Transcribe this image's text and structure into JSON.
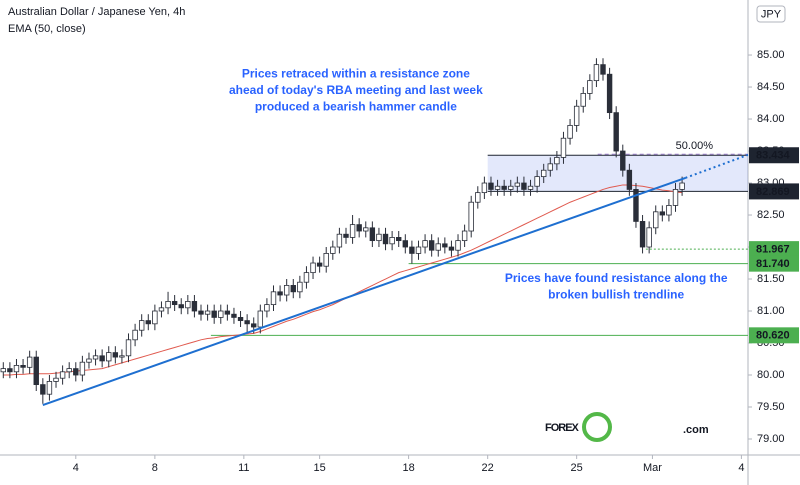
{
  "chart_data": {
    "type": "candlestick",
    "title": "Australian Dollar / Japanese Yen, 4h",
    "currency": "JPY",
    "open": [
      80.05,
      80.1,
      80.05,
      80.15,
      80.12,
      80.28,
      79.85,
      79.7,
      79.9,
      79.95,
      80.05,
      80.1,
      80.0,
      80.2,
      80.25,
      80.3,
      80.22,
      80.35,
      80.28,
      80.3,
      80.55,
      80.7,
      80.85,
      80.8,
      81.0,
      81.05,
      81.15,
      81.1,
      81.05,
      81.15,
      81.0,
      80.95,
      81.0,
      80.9,
      81.0,
      80.95,
      80.9,
      80.85,
      80.8,
      80.75,
      81.0,
      81.1,
      81.3,
      81.25,
      81.4,
      81.3,
      81.45,
      81.6,
      81.75,
      81.7,
      81.9,
      82.0,
      82.2,
      82.15,
      82.35,
      82.25,
      82.3,
      82.1,
      82.2,
      82.05,
      82.15,
      82.1,
      82.0,
      81.9,
      82.0,
      82.1,
      81.95,
      82.05,
      82.0,
      81.95,
      82.1,
      82.25,
      82.7,
      82.85,
      83.0,
      82.9,
      82.95,
      82.9,
      82.95,
      83.0,
      82.9,
      82.95,
      83.1,
      83.2,
      83.3,
      83.4,
      83.7,
      83.9,
      84.2,
      84.4,
      84.6,
      84.85,
      84.7,
      84.1,
      83.5,
      83.2,
      82.9,
      82.4,
      82.0,
      82.3,
      82.55,
      82.5,
      82.65,
      82.9
    ],
    "high": [
      80.2,
      80.2,
      80.25,
      80.25,
      80.38,
      80.38,
      79.95,
      80.0,
      80.05,
      80.15,
      80.2,
      80.2,
      80.3,
      80.35,
      80.4,
      80.4,
      80.45,
      80.45,
      80.4,
      80.65,
      80.8,
      80.95,
      80.95,
      81.1,
      81.15,
      81.3,
      81.25,
      81.2,
      81.25,
      81.25,
      81.1,
      81.1,
      81.1,
      81.1,
      81.1,
      81.05,
      81.0,
      80.95,
      80.9,
      81.1,
      81.2,
      81.4,
      81.4,
      81.5,
      81.5,
      81.55,
      81.7,
      81.85,
      81.85,
      82.0,
      82.1,
      82.3,
      82.3,
      82.5,
      82.45,
      82.4,
      82.4,
      82.3,
      82.3,
      82.25,
      82.25,
      82.2,
      82.1,
      82.1,
      82.2,
      82.2,
      82.15,
      82.15,
      82.1,
      82.2,
      82.35,
      82.8,
      82.95,
      83.1,
      83.1,
      83.05,
      83.05,
      83.05,
      83.1,
      83.1,
      83.05,
      83.2,
      83.3,
      83.4,
      83.5,
      83.8,
      84.0,
      84.3,
      84.5,
      84.7,
      84.95,
      84.95,
      84.8,
      84.2,
      83.6,
      83.3,
      83.0,
      82.5,
      82.4,
      82.65,
      82.65,
      82.75,
      83.0,
      83.1
    ],
    "low": [
      79.95,
      79.95,
      79.95,
      80.02,
      80.02,
      79.75,
      79.55,
      79.6,
      79.8,
      79.85,
      79.95,
      79.9,
      79.9,
      80.1,
      80.15,
      80.12,
      80.12,
      80.18,
      80.18,
      80.2,
      80.45,
      80.6,
      80.7,
      80.7,
      80.9,
      80.95,
      81.0,
      80.95,
      80.95,
      80.9,
      80.85,
      80.85,
      80.8,
      80.8,
      80.85,
      80.8,
      80.75,
      80.65,
      80.65,
      80.65,
      80.9,
      81.0,
      81.15,
      81.15,
      81.2,
      81.2,
      81.35,
      81.5,
      81.6,
      81.6,
      81.8,
      81.9,
      82.05,
      82.05,
      82.15,
      82.15,
      82.0,
      82.0,
      81.95,
      81.95,
      82.0,
      81.9,
      81.74,
      81.8,
      81.9,
      81.85,
      81.85,
      81.9,
      81.85,
      81.85,
      82.0,
      82.15,
      82.6,
      82.75,
      82.8,
      82.8,
      82.8,
      82.8,
      82.85,
      82.8,
      82.8,
      82.85,
      83.0,
      83.1,
      83.2,
      83.3,
      83.6,
      83.8,
      84.1,
      84.3,
      84.5,
      84.6,
      84.0,
      83.4,
      83.1,
      82.8,
      82.3,
      81.9,
      81.9,
      82.2,
      82.4,
      82.4,
      82.55,
      82.8
    ],
    "close": [
      80.1,
      80.05,
      80.15,
      80.12,
      80.28,
      79.85,
      79.7,
      79.9,
      79.95,
      80.05,
      80.1,
      80.0,
      80.2,
      80.25,
      80.3,
      80.22,
      80.35,
      80.28,
      80.3,
      80.55,
      80.7,
      80.85,
      80.8,
      81.0,
      81.05,
      81.15,
      81.1,
      81.05,
      81.15,
      81.0,
      80.95,
      81.0,
      80.9,
      81.0,
      80.95,
      80.9,
      80.85,
      80.8,
      80.75,
      81.0,
      81.1,
      81.3,
      81.25,
      81.4,
      81.3,
      81.45,
      81.6,
      81.75,
      81.7,
      81.9,
      82.0,
      82.2,
      82.15,
      82.35,
      82.25,
      82.3,
      82.1,
      82.2,
      82.05,
      82.15,
      82.1,
      82.0,
      81.9,
      82.0,
      82.1,
      81.95,
      82.05,
      82.0,
      81.95,
      82.1,
      82.25,
      82.7,
      82.85,
      83.0,
      82.9,
      82.95,
      82.9,
      82.95,
      83.0,
      82.9,
      82.95,
      83.1,
      83.2,
      83.3,
      83.4,
      83.7,
      83.9,
      84.2,
      84.4,
      84.6,
      84.85,
      84.7,
      84.1,
      83.5,
      83.2,
      82.9,
      82.4,
      82.0,
      82.3,
      82.55,
      82.5,
      82.65,
      82.9,
      83.0
    ],
    "up_color": "#ffffff",
    "down_color": "#2a2e39",
    "wick_color": "#2a2e39",
    "ema": {
      "name": "EMA (50, close)",
      "color": "#e05a4f",
      "values": [
        80.0,
        80.0,
        80.01,
        80.01,
        80.02,
        80.02,
        80.02,
        80.02,
        80.03,
        80.04,
        80.05,
        80.06,
        80.07,
        80.08,
        80.09,
        80.1,
        80.13,
        80.16,
        80.19,
        80.22,
        80.25,
        80.28,
        80.31,
        80.34,
        80.37,
        80.4,
        80.43,
        80.46,
        80.49,
        80.52,
        80.55,
        80.57,
        80.58,
        80.6,
        80.61,
        80.62,
        80.63,
        80.64,
        80.65,
        80.68,
        80.72,
        80.76,
        80.8,
        80.84,
        80.87,
        80.91,
        80.95,
        80.99,
        81.02,
        81.06,
        81.1,
        81.15,
        81.2,
        81.25,
        81.3,
        81.35,
        81.4,
        81.45,
        81.5,
        81.55,
        81.6,
        81.63,
        81.66,
        81.69,
        81.72,
        81.75,
        81.78,
        81.81,
        81.84,
        81.87,
        81.91,
        81.95,
        82.0,
        82.05,
        82.1,
        82.15,
        82.2,
        82.25,
        82.3,
        82.35,
        82.4,
        82.45,
        82.5,
        82.55,
        82.6,
        82.65,
        82.7,
        82.74,
        82.78,
        82.82,
        82.86,
        82.9,
        82.93,
        82.95,
        82.97,
        82.97,
        82.96,
        82.95,
        82.93,
        82.91,
        82.89,
        82.88,
        82.86,
        82.85
      ]
    },
    "xlim": [
      0,
      113.5
    ],
    "xticks": [
      {
        "value": 11.5,
        "label": "4"
      },
      {
        "value": 23.5,
        "label": "8"
      },
      {
        "value": 37,
        "label": "11"
      },
      {
        "value": 48.5,
        "label": "15"
      },
      {
        "value": 62,
        "label": "18"
      },
      {
        "value": 74,
        "label": "22"
      },
      {
        "value": 87.5,
        "label": "25"
      },
      {
        "value": 99,
        "label": "Mar"
      },
      {
        "value": 112.5,
        "label": "4"
      }
    ],
    "ylim": [
      78.75,
      85.86
    ],
    "yticks": [
      {
        "value": 85,
        "label": "85.00"
      },
      {
        "value": 84.5,
        "label": "84.50"
      },
      {
        "value": 84,
        "label": "84.00"
      },
      {
        "value": 83.5,
        "label": "83.50"
      },
      {
        "value": 83,
        "label": "83.00"
      },
      {
        "value": 82.5,
        "label": "82.50"
      },
      {
        "value": 82,
        "label": "82.00"
      },
      {
        "value": 81.5,
        "label": "81.50"
      },
      {
        "value": 81,
        "label": "81.00"
      },
      {
        "value": 80.5,
        "label": "80.50"
      },
      {
        "value": 80,
        "label": "80.00"
      },
      {
        "value": 79.5,
        "label": "79.50"
      },
      {
        "value": 79,
        "label": "79.00"
      }
    ],
    "resistance_zone": {
      "start": 74,
      "top": 83.434,
      "bottom": 82.869,
      "fill": "rgba(98,128,235,0.18)",
      "fib_label": "50.00%",
      "fib_color": "#9c7bd0"
    },
    "levels": [
      {
        "value": 83.434,
        "label": "83.434",
        "start": 74,
        "color": "#1e2430",
        "style": "solid"
      },
      {
        "value": 82.869,
        "label": "82.869",
        "start": 74,
        "color": "#1e2430",
        "style": "solid"
      },
      {
        "value": 81.967,
        "label": "81.967",
        "start": 98,
        "color": "#4caf50",
        "style": "dotted"
      },
      {
        "value": 81.74,
        "label": "81.740",
        "start": 62,
        "color": "#4caf50",
        "style": "solid"
      },
      {
        "value": 80.62,
        "label": "80.620",
        "start": 32,
        "color": "#4caf50",
        "style": "solid"
      }
    ],
    "trendline": {
      "color": "#1e6fd0",
      "start": [
        6.5,
        79.53
      ],
      "end": [
        104,
        83.08
      ],
      "extension_end": [
        113.5,
        83.44
      ]
    },
    "annotations": [
      {
        "lines": [
          "Prices retraced within a resistance zone",
          "ahead of today's RBA meeting and last week",
          "produced a bearish hammer candle"
        ],
        "at": [
          54,
          84.7
        ]
      },
      {
        "lines": [
          "Prices have found resistance along the",
          "broken bullish trendline"
        ],
        "at": [
          93.5,
          81.5
        ]
      }
    ],
    "logo": {
      "brand": "FOREX",
      "suffix": ".com"
    }
  }
}
